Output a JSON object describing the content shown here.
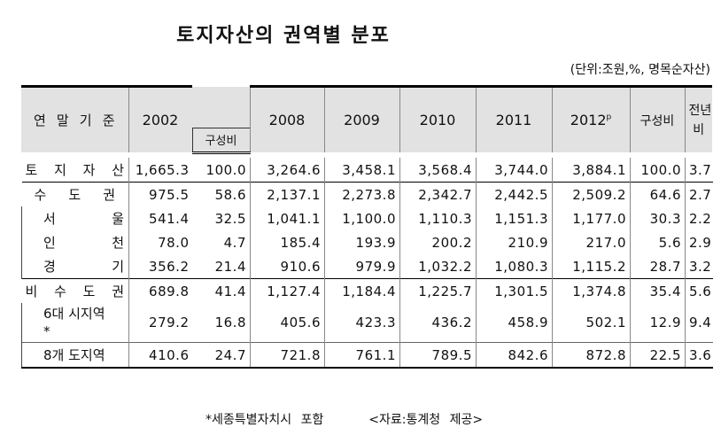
{
  "title": "토지자산의 권역별 분포",
  "unit": "(단위:조원,%, 명목순자산)",
  "header": {
    "row_label": "연 말 기 준",
    "years": [
      "2002",
      "2008",
      "2009",
      "2010",
      "2011",
      "2012"
    ],
    "sup_2012": "p",
    "share": "구성비",
    "yoy_1": "전년",
    "yoy_2": "비"
  },
  "rows": [
    {
      "label": "토 지 자 산",
      "v": [
        "1,665.3",
        "100.0",
        "3,264.6",
        "3,458.1",
        "3,568.4",
        "3,744.0",
        "3,884.1",
        "100.0",
        "3.7"
      ]
    },
    {
      "label": "수 도 권",
      "v": [
        "975.5",
        "58.6",
        "2,137.1",
        "2,273.8",
        "2,342.7",
        "2,442.5",
        "2,509.2",
        "64.6",
        "2.7"
      ]
    },
    {
      "label": "서 울",
      "v": [
        "541.4",
        "32.5",
        "1,041.1",
        "1,100.0",
        "1,110.3",
        "1,151.3",
        "1,177.0",
        "30.3",
        "2.2"
      ]
    },
    {
      "label": "인 천",
      "v": [
        "78.0",
        "4.7",
        "185.4",
        "193.9",
        "200.2",
        "210.9",
        "217.0",
        "5.6",
        "2.9"
      ]
    },
    {
      "label": "경 기",
      "v": [
        "356.2",
        "21.4",
        "910.6",
        "979.9",
        "1,032.2",
        "1,080.3",
        "1,115.2",
        "28.7",
        "3.2"
      ]
    },
    {
      "label": "비 수 도 권",
      "v": [
        "689.8",
        "41.4",
        "1,127.4",
        "1,184.4",
        "1,225.7",
        "1,301.5",
        "1,374.8",
        "35.4",
        "5.6"
      ]
    },
    {
      "label": "6대 시지역",
      "label2": "*",
      "v": [
        "279.2",
        "16.8",
        "405.6",
        "423.3",
        "436.2",
        "458.9",
        "502.1",
        "12.9",
        "9.4"
      ]
    },
    {
      "label": "8개 도지역",
      "v": [
        "410.6",
        "24.7",
        "721.8",
        "761.1",
        "789.5",
        "842.6",
        "872.8",
        "22.5",
        "3.6"
      ]
    }
  ],
  "note": "*세종특별자치시 포함",
  "source": "<자료:통계청 제공>"
}
